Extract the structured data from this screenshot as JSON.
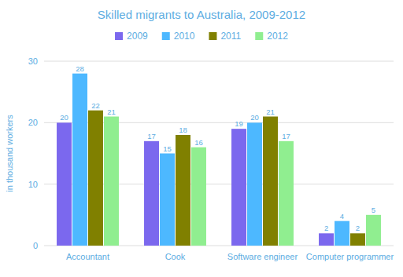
{
  "chart_data": {
    "type": "bar",
    "title": "Skilled migrants to Australia, 2009-2012",
    "y_label": "in thousand workers",
    "categories": [
      "Accountant",
      "Cook",
      "Software engineer",
      "Computer programmer"
    ],
    "series": [
      {
        "name": "2009",
        "color": "#7B68EE",
        "values": [
          20,
          17,
          19,
          2
        ]
      },
      {
        "name": "2010",
        "color": "#4DB8FF",
        "values": [
          28,
          15,
          20,
          4
        ]
      },
      {
        "name": "2011",
        "color": "#808000",
        "values": [
          22,
          18,
          21,
          2
        ]
      },
      {
        "name": "2012",
        "color": "#90EE90",
        "values": [
          21,
          16,
          17,
          5
        ]
      }
    ],
    "ylim": [
      0,
      30
    ],
    "yticks": [
      0,
      10,
      20,
      30
    ],
    "grid": true,
    "legend": "top",
    "data_labels": true
  }
}
